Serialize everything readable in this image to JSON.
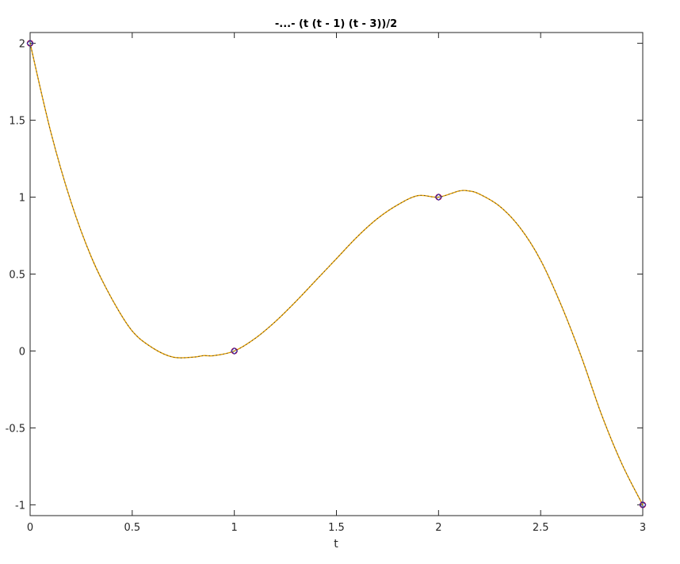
{
  "chart_data": {
    "type": "line",
    "title": "-...- (t (t - 1) (t - 3))/2",
    "xlabel": "t",
    "ylabel": "",
    "xlim": [
      0,
      3
    ],
    "ylim": [
      -1.07,
      2.07
    ],
    "xticks": [
      0,
      0.5,
      1,
      1.5,
      2,
      2.5,
      3
    ],
    "xtick_labels": [
      "0",
      "0.5",
      "1",
      "1.5",
      "2",
      "2.5",
      "3"
    ],
    "yticks": [
      -1,
      -0.5,
      0,
      0.5,
      1,
      1.5,
      2
    ],
    "ytick_labels": [
      "-1",
      "-0.5",
      "0",
      "0.5",
      "1",
      "1.5",
      "2"
    ],
    "grid": false,
    "legend": "none",
    "curve": {
      "x": [
        0,
        0.1,
        0.2,
        0.3,
        0.4,
        0.5,
        0.6,
        0.7,
        0.8,
        0.85,
        0.9,
        1.0,
        1.1,
        1.2,
        1.3,
        1.4,
        1.5,
        1.6,
        1.7,
        1.8,
        1.9,
        2.0,
        2.1,
        2.15,
        2.2,
        2.3,
        2.4,
        2.5,
        2.6,
        2.7,
        2.8,
        2.9,
        3.0
      ],
      "y": [
        2.0,
        1.43,
        0.97,
        0.61,
        0.34,
        0.13,
        0.02,
        -0.04,
        -0.04,
        -0.03,
        -0.03,
        0.0,
        0.08,
        0.19,
        0.32,
        0.46,
        0.6,
        0.74,
        0.86,
        0.95,
        1.01,
        1.0,
        1.04,
        1.04,
        1.02,
        0.94,
        0.8,
        0.59,
        0.3,
        -0.04,
        -0.42,
        -0.74,
        -1.0
      ],
      "colors": [
        "#e6a000",
        "#3a3a3a"
      ]
    },
    "markers": {
      "x": [
        0,
        1,
        2,
        3
      ],
      "y": [
        2,
        0,
        1,
        -1
      ],
      "colors": [
        "#b0003a",
        "#2a2aa8"
      ]
    }
  }
}
